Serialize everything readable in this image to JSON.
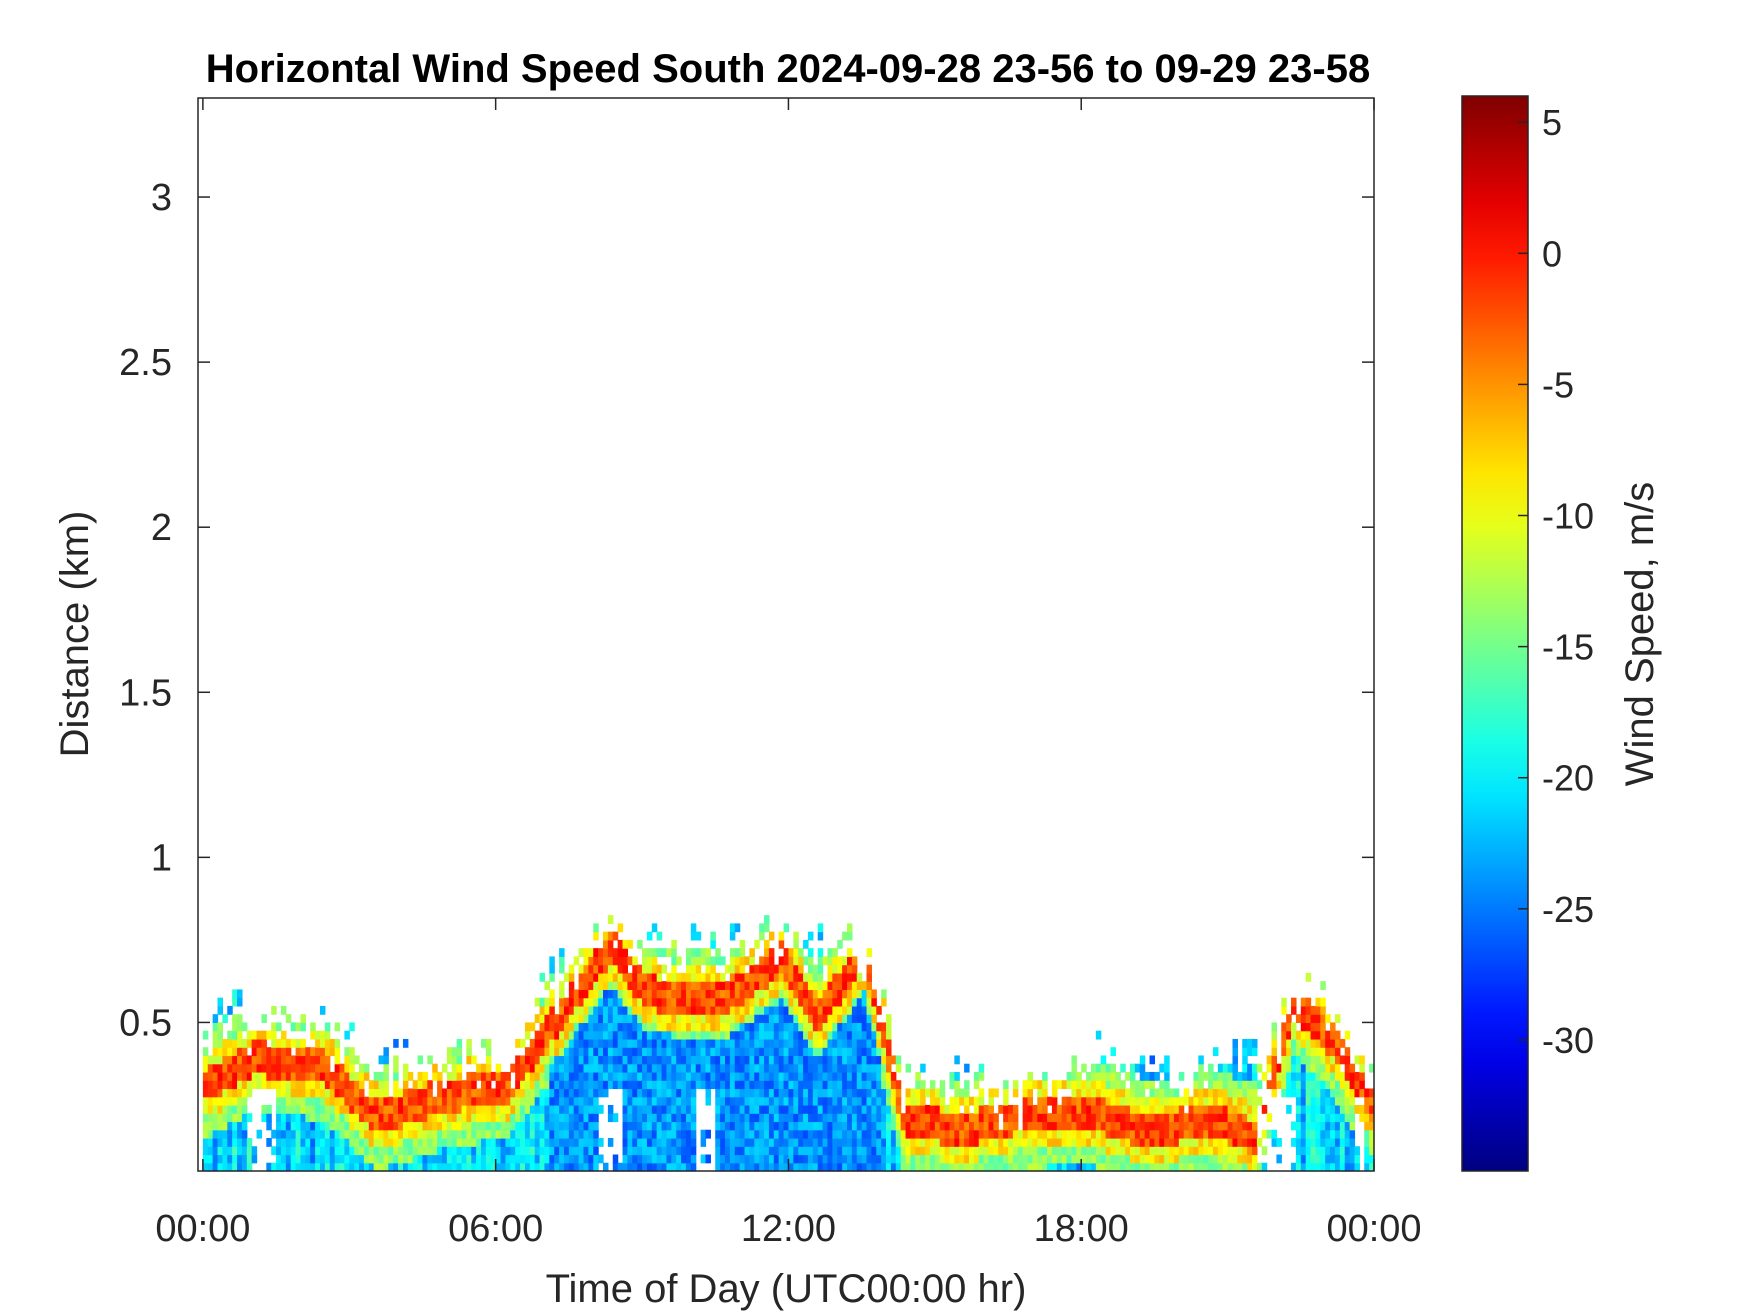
{
  "chart_data": {
    "type": "heatmap",
    "title": "Horizontal Wind Speed South 2024-09-28 23-56 to 09-29 23-58",
    "xlabel": "Time of Day (UTC00:00 hr)",
    "ylabel": "Distance (km)",
    "colorbar_label": "Wind Speed, m/s",
    "xlim_hours": [
      -0.1,
      24.0
    ],
    "ylim_km": [
      0.05,
      3.3
    ],
    "x_ticks": [
      {
        "hour": 0,
        "label": "00:00"
      },
      {
        "hour": 6,
        "label": "06:00"
      },
      {
        "hour": 12,
        "label": "12:00"
      },
      {
        "hour": 18,
        "label": "18:00"
      },
      {
        "hour": 24,
        "label": "00:00"
      }
    ],
    "y_ticks": [
      {
        "km": 0.5,
        "label": "0.5"
      },
      {
        "km": 1.0,
        "label": "1"
      },
      {
        "km": 1.5,
        "label": "1.5"
      },
      {
        "km": 2.0,
        "label": "2"
      },
      {
        "km": 2.5,
        "label": "2.5"
      },
      {
        "km": 3.0,
        "label": "3"
      }
    ],
    "color_limits": [
      -35,
      6
    ],
    "colormap": "jet",
    "colorbar_ticks": [
      {
        "value": 5,
        "label": "5"
      },
      {
        "value": 0,
        "label": "0"
      },
      {
        "value": -5,
        "label": "-5"
      },
      {
        "value": -10,
        "label": "-10"
      },
      {
        "value": -15,
        "label": "-15"
      },
      {
        "value": -20,
        "label": "-20"
      },
      {
        "value": -25,
        "label": "-25"
      },
      {
        "value": -30,
        "label": "-30"
      }
    ],
    "data_top_profile": [
      [
        0,
        0.45
      ],
      [
        0.5,
        0.55
      ],
      [
        1.2,
        0.5
      ],
      [
        2.5,
        0.48
      ],
      [
        3.2,
        0.4
      ],
      [
        4.0,
        0.37
      ],
      [
        5.5,
        0.4
      ],
      [
        6.3,
        0.42
      ],
      [
        6.8,
        0.6
      ],
      [
        7.5,
        0.66
      ],
      [
        8.3,
        0.8
      ],
      [
        9.0,
        0.75
      ],
      [
        10.5,
        0.73
      ],
      [
        11.8,
        0.78
      ],
      [
        12.5,
        0.73
      ],
      [
        13.3,
        0.75
      ],
      [
        13.8,
        0.6
      ],
      [
        14.3,
        0.3
      ],
      [
        15.5,
        0.35
      ],
      [
        16.5,
        0.28
      ],
      [
        17.5,
        0.35
      ],
      [
        18.3,
        0.4
      ],
      [
        19.5,
        0.33
      ],
      [
        20.8,
        0.38
      ],
      [
        21.8,
        0.4
      ],
      [
        22.3,
        0.6
      ],
      [
        23.0,
        0.55
      ],
      [
        23.5,
        0.4
      ],
      [
        24.0,
        0.35
      ]
    ],
    "low_speed_band_center_km": [
      [
        0,
        0.3
      ],
      [
        1.0,
        0.38
      ],
      [
        2.5,
        0.35
      ],
      [
        3.5,
        0.2
      ],
      [
        5.0,
        0.27
      ],
      [
        6.2,
        0.3
      ],
      [
        7.2,
        0.5
      ],
      [
        8.3,
        0.72
      ],
      [
        9.0,
        0.58
      ],
      [
        10.5,
        0.55
      ],
      [
        11.8,
        0.68
      ],
      [
        12.5,
        0.5
      ],
      [
        13.5,
        0.7
      ],
      [
        14.3,
        0.2
      ],
      [
        15.5,
        0.16
      ],
      [
        16.5,
        0.2
      ],
      [
        18.0,
        0.22
      ],
      [
        19.5,
        0.15
      ],
      [
        20.5,
        0.2
      ],
      [
        21.5,
        0.14
      ],
      [
        22.3,
        0.55
      ],
      [
        23.0,
        0.45
      ],
      [
        24.0,
        0.22
      ]
    ],
    "data_gaps_hours": [
      [
        0.8,
        1.5
      ],
      [
        8.0,
        8.5
      ],
      [
        10.0,
        10.4
      ],
      [
        21.6,
        22.4
      ],
      [
        23.6,
        23.8
      ]
    ]
  }
}
